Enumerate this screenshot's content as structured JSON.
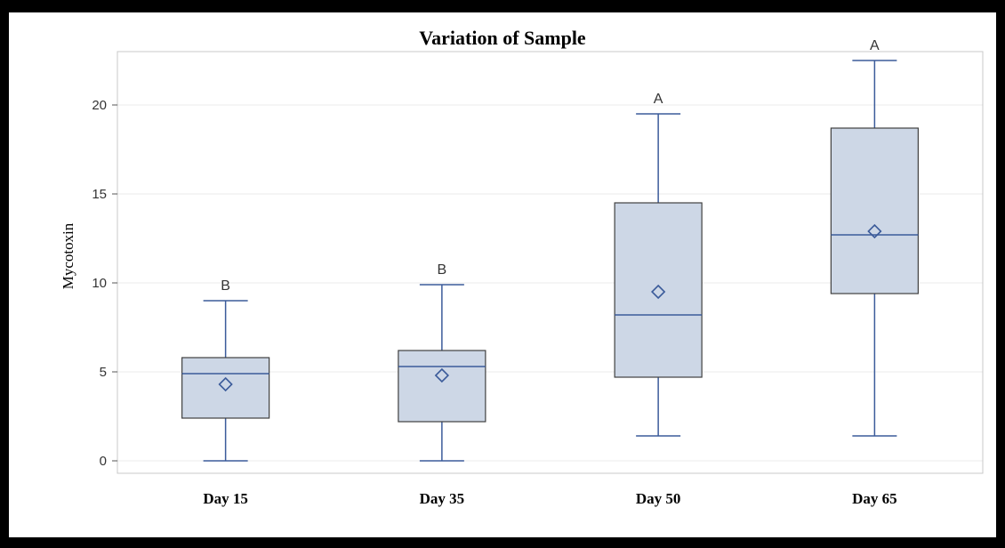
{
  "chart_data": {
    "type": "box",
    "title": "Variation of Sample",
    "xlabel": "",
    "ylabel": "Mycotoxin",
    "ylim": [
      -0.7,
      23
    ],
    "yticks": [
      0,
      5,
      10,
      15,
      20
    ],
    "grid": true,
    "categories": [
      "Day 15",
      "Day 35",
      "Day 50",
      "Day 65"
    ],
    "boxes": [
      {
        "min": 0,
        "q1": 2.4,
        "median": 4.9,
        "q3": 5.8,
        "max": 9.0,
        "mean": 4.3,
        "letter": "B"
      },
      {
        "min": 0,
        "q1": 2.2,
        "median": 5.3,
        "q3": 6.2,
        "max": 9.9,
        "mean": 4.8,
        "letter": "B"
      },
      {
        "min": 1.4,
        "q1": 4.7,
        "median": 8.2,
        "q3": 14.5,
        "max": 19.5,
        "mean": 9.5,
        "letter": "A"
      },
      {
        "min": 1.4,
        "q1": 9.4,
        "median": 12.7,
        "q3": 18.7,
        "max": 22.5,
        "mean": 12.9,
        "letter": "A"
      }
    ],
    "colors": {
      "box_fill": "#cdd7e6",
      "box_edge": "#404040",
      "whisker": "#3b5b9a",
      "median": "#3b5b9a",
      "mean_marker": "#3b5b9a",
      "grid": "#ebebeb"
    }
  }
}
